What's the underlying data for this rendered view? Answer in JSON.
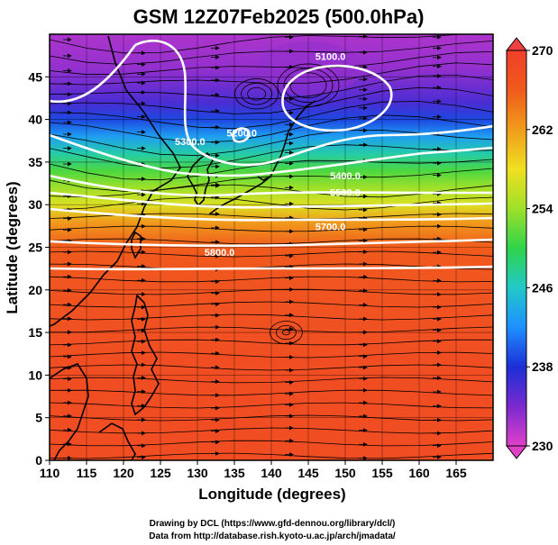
{
  "title": "GSM 12Z07Feb2025 (500.0hPa)",
  "chart_data": {
    "type": "heatmap",
    "title": "GSM 12Z07Feb2025 (500.0hPa)",
    "xlabel": "Longitude (degrees)",
    "ylabel": "Latitude  (degrees)",
    "xlim": [
      110,
      170
    ],
    "ylim": [
      0,
      50
    ],
    "x_ticks": [
      "110",
      "115",
      "120",
      "125",
      "130",
      "135",
      "140",
      "145",
      "150",
      "155",
      "160",
      "165"
    ],
    "y_ticks": [
      "0",
      "5",
      "10",
      "15",
      "20",
      "25",
      "30",
      "35",
      "40",
      "45"
    ],
    "grid": true,
    "colorbar": {
      "min": 230,
      "max": 270,
      "placement": "right",
      "ticks": [
        "230",
        "238",
        "246",
        "254",
        "262",
        "270"
      ],
      "colors": [
        "#e040c8",
        "#7a2ad0",
        "#1c2fd6",
        "#1e90ff",
        "#21c8c8",
        "#2fd44a",
        "#9ee02a",
        "#f0e020",
        "#f09c1c",
        "#f05a1c",
        "#f0402a"
      ]
    },
    "temperature_bands": [
      {
        "lat": 50,
        "value": 232
      },
      {
        "lat": 46,
        "value": 233
      },
      {
        "lat": 42,
        "value": 236
      },
      {
        "lat": 40,
        "value": 239
      },
      {
        "lat": 38,
        "value": 243
      },
      {
        "lat": 36,
        "value": 247
      },
      {
        "lat": 34,
        "value": 251
      },
      {
        "lat": 32,
        "value": 254
      },
      {
        "lat": 30,
        "value": 257
      },
      {
        "lat": 28,
        "value": 262
      },
      {
        "lat": 25,
        "value": 266
      },
      {
        "lat": 20,
        "value": 267
      },
      {
        "lat": 10,
        "value": 268
      },
      {
        "lat": 0,
        "value": 268
      }
    ],
    "contours": [
      {
        "label": "5100.0",
        "label_lon": 148,
        "label_lat": 47
      },
      {
        "label": "5200.0",
        "label_lon": 136,
        "label_lat": 38
      },
      {
        "label": "5300.0",
        "label_lon": 129,
        "label_lat": 37
      },
      {
        "label": "5400.0",
        "label_lon": 150,
        "label_lat": 33
      },
      {
        "label": "5500.0",
        "label_lon": 150,
        "label_lat": 31
      },
      {
        "label": "5700.0",
        "label_lon": 148,
        "label_lat": 27
      },
      {
        "label": "5800.0",
        "label_lon": 133,
        "label_lat": 24
      }
    ]
  },
  "credits": {
    "line1": "Drawing by DCL (https://www.gfd-dennou.org/library/dcl/)",
    "line2": "Data from http://database.rish.kyoto-u.ac.jp/arch/jmadata/"
  }
}
